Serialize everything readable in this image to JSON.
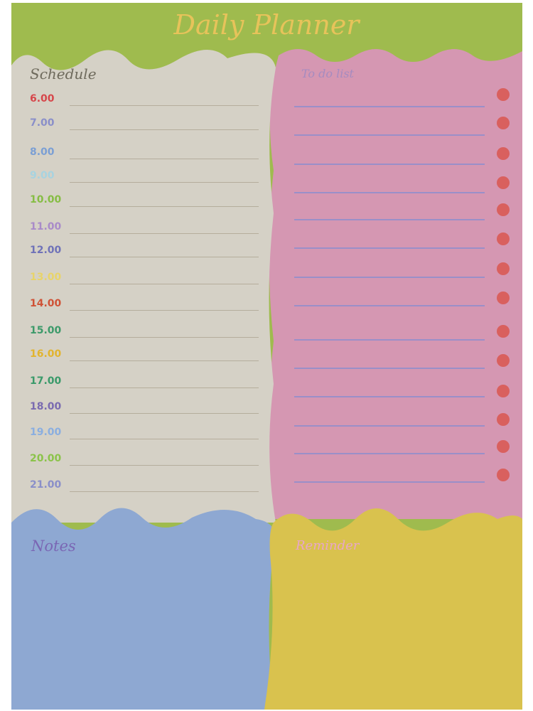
{
  "title": "Daily Planner",
  "sections": {
    "schedule": "Schedule",
    "todo": "To do list",
    "notes": "Notes",
    "reminder": "Reminder"
  },
  "colors": {
    "header": "#9fbb4e",
    "schedule_bg": "#d5d1c6",
    "todo_bg": "#d597b2",
    "notes_bg": "#8ea8d2",
    "reminder_bg": "#d9c24e",
    "title": "#e7c35a",
    "todo_dot": "#d9605e"
  },
  "schedule": [
    {
      "time": "6.00",
      "color": "#d6474b"
    },
    {
      "time": "7.00",
      "color": "#8a8fc9"
    },
    {
      "time": "8.00",
      "color": "#7b9fd4"
    },
    {
      "time": "9.00",
      "color": "#a7d3e0"
    },
    {
      "time": "10.00",
      "color": "#86bd44"
    },
    {
      "time": "11.00",
      "color": "#a98bc9"
    },
    {
      "time": "12.00",
      "color": "#6f72b8"
    },
    {
      "time": "13.00",
      "color": "#e8d46a"
    },
    {
      "time": "14.00",
      "color": "#cf5236"
    },
    {
      "time": "15.00",
      "color": "#3d9a6a"
    },
    {
      "time": "16.00",
      "color": "#e2b42e"
    },
    {
      "time": "17.00",
      "color": "#3a9a6a"
    },
    {
      "time": "18.00",
      "color": "#7a6bb0"
    },
    {
      "time": "19.00",
      "color": "#8aaee0"
    },
    {
      "time": "20.00",
      "color": "#8bc34a"
    },
    {
      "time": "21.00",
      "color": "#8a8fc9"
    }
  ],
  "todo_item_count": 14
}
